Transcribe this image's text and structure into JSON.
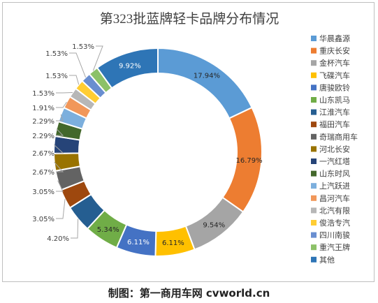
{
  "chart_data": {
    "type": "donut",
    "title": "第323批蓝牌轻卡品牌分布情况",
    "unit": "%",
    "legend_position": "right",
    "series": [
      {
        "name": "华晨鑫源",
        "value": 17.94,
        "label": "17.94%",
        "color": "#5b9bd5"
      },
      {
        "name": "重庆长安",
        "value": 16.79,
        "label": "16.79%",
        "color": "#ed7d31"
      },
      {
        "name": "金杯汽车",
        "value": 9.54,
        "label": "9.54%",
        "color": "#a5a5a5"
      },
      {
        "name": "飞碟汽车",
        "value": 6.11,
        "label": "6.11%",
        "color": "#ffc000"
      },
      {
        "name": "唐骏欧铃",
        "value": 6.11,
        "label": "6.11%",
        "color": "#4472c4"
      },
      {
        "name": "山东凯马",
        "value": 5.34,
        "label": "5.34%",
        "color": "#70ad47"
      },
      {
        "name": "江淮汽车",
        "value": 4.2,
        "label": "4.20%",
        "color": "#255e91"
      },
      {
        "name": "福田汽车",
        "value": 3.05,
        "label": "3.05%",
        "color": "#9e480e"
      },
      {
        "name": "奇瑞商用车",
        "value": 3.05,
        "label": "3.05%",
        "color": "#636363"
      },
      {
        "name": "河北长安",
        "value": 2.67,
        "label": "2.67%",
        "color": "#997300"
      },
      {
        "name": "一汽红塔",
        "value": 2.67,
        "label": "2.67%",
        "color": "#264478"
      },
      {
        "name": "山东时风",
        "value": 2.29,
        "label": "2.29%",
        "color": "#43682b"
      },
      {
        "name": "上汽跃进",
        "value": 2.29,
        "label": "2.29%",
        "color": "#7cafdd"
      },
      {
        "name": "昌河汽车",
        "value": 1.91,
        "label": "1.91%",
        "color": "#f1975a"
      },
      {
        "name": "北汽有限",
        "value": 1.53,
        "label": "1.53%",
        "color": "#b7b7b7"
      },
      {
        "name": "俊浩专汽",
        "value": 1.53,
        "label": "1.53%",
        "color": "#ffcd33"
      },
      {
        "name": "四川南骏",
        "value": 1.53,
        "label": "1.53%",
        "color": "#698ed0"
      },
      {
        "name": "重汽王牌",
        "value": 1.53,
        "label": "1.53%",
        "color": "#8cc168"
      },
      {
        "name": "其他",
        "value": 9.92,
        "label": "9.92%",
        "color": "#2e75b6"
      }
    ]
  },
  "credit": "制图：第一商用车网 cvworld.cn"
}
